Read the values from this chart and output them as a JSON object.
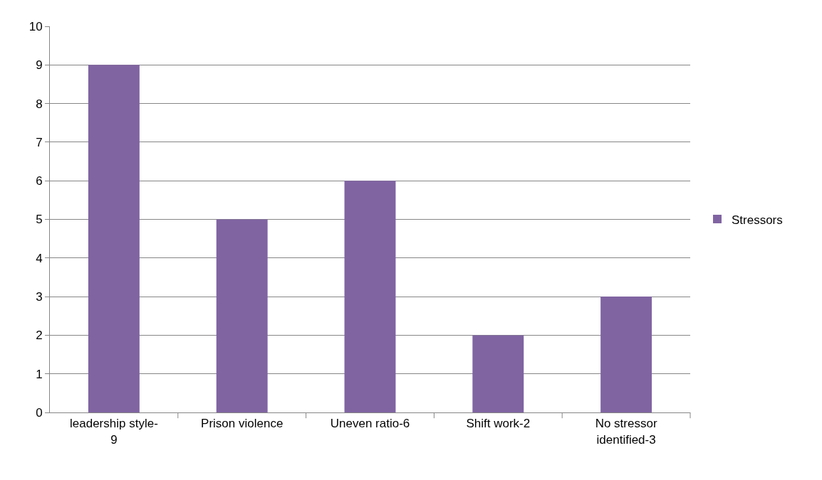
{
  "chart_data": {
    "type": "bar",
    "categories": [
      "leadership style-9",
      "Prison violence",
      "Uneven ratio-6",
      "Shift work-2",
      "No stressor identified-3"
    ],
    "series": [
      {
        "name": "Stressors",
        "color": "#8064a2",
        "values": [
          9,
          5,
          6,
          2,
          3
        ]
      }
    ],
    "ylim": [
      0,
      10
    ],
    "yticks": [
      0,
      1,
      2,
      3,
      4,
      5,
      6,
      7,
      8,
      9,
      10
    ],
    "grid": "y",
    "legend": "right"
  }
}
